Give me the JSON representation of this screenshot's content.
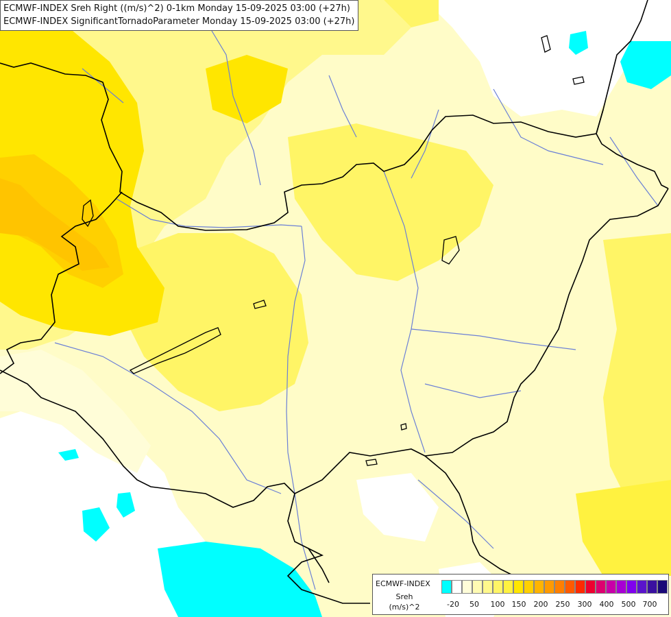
{
  "title": {
    "line1": "ECMWF-INDEX Sreh Right ((m/s)^2) 0-1km Monday 15-09-2025 03:00 (+27h)",
    "line2": "ECMWF-INDEX SignificantTornadoParameter Monday 15-09-2025 03:00 (+27h)"
  },
  "legend": {
    "title": "ECMWF-INDEX",
    "variable": "Sreh",
    "unit": "(m/s)^2",
    "ticks": [
      "-20",
      "50",
      "100",
      "150",
      "200",
      "250",
      "300",
      "400",
      "500",
      "700"
    ],
    "colors": [
      "#00ffff",
      "#ffffff",
      "#fffdd8",
      "#fffbb3",
      "#fff88c",
      "#fff566",
      "#fff240",
      "#ffe600",
      "#ffd000",
      "#ffb400",
      "#ff9a00",
      "#ff7f00",
      "#ff5a00",
      "#ff2a00",
      "#ee0030",
      "#dd0070",
      "#c800a8",
      "#a800d4",
      "#8000ee",
      "#5a14cc",
      "#3a10a0",
      "#1a0878"
    ]
  },
  "palette": {
    "background": "#ffffff",
    "field_low": "#fffdd8",
    "field_mid": "#fff88c",
    "field_high": "#ffe600",
    "field_peak": "#ffc400",
    "negative": "#00ffff",
    "border": "#000000",
    "river": "#6a7fd6"
  }
}
